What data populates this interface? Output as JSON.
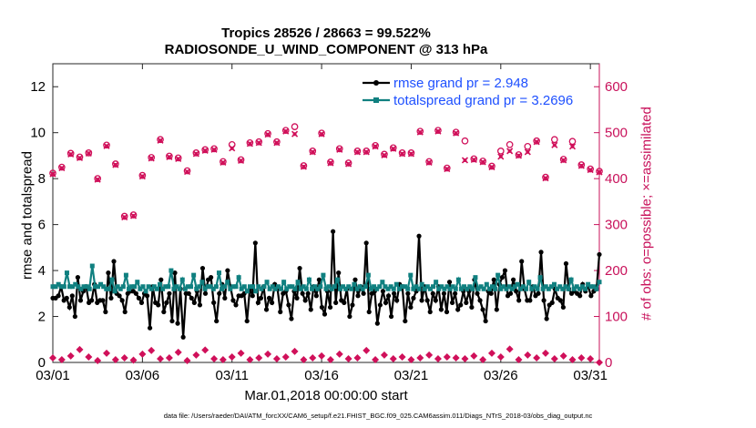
{
  "chart_data": {
    "type": "line",
    "title": "Tropics 28526 / 28663 = 99.522%",
    "subtitle": "RADIOSONDE_U_WIND_COMPONENT @ 313 hPa",
    "xlabel": "Mar.01,2018 00:00:00 start",
    "ylabel_left": "rmse and totalspread",
    "ylabel_right": "# of obs: o=possible; ×=assimilated",
    "footnote": "data file: /Users/raeder/DAI/ATM_forcXX/CAM6_setup/f.e21.FHIST_BGC.f09_025.CAM6assim.011/Diags_NTrS_2018-03/obs_diag_output.nc",
    "x_ticks": [
      "03/01",
      "03/06",
      "03/11",
      "03/16",
      "03/21",
      "03/26",
      "03/31"
    ],
    "x_tick_days": [
      0,
      5,
      10,
      15,
      20,
      25,
      30
    ],
    "xlim": [
      0,
      30.5
    ],
    "ylim_left": [
      0,
      13
    ],
    "yticks_left": [
      "0",
      "2",
      "4",
      "6",
      "8",
      "10",
      "12"
    ],
    "ylim_right": [
      0,
      650
    ],
    "yticks_right": [
      "0",
      "100",
      "200",
      "300",
      "400",
      "500",
      "600"
    ],
    "legend": [
      {
        "label": "rmse grand pr = 2.948",
        "color": "#000000"
      },
      {
        "label": "totalspread grand pr = 3.2696",
        "color": "#108080"
      }
    ],
    "colors": {
      "rmse": "#000000",
      "spread": "#108080",
      "obs": "#d0105a",
      "label_blue": "#1e50ff"
    },
    "series": [
      {
        "name": "rmse",
        "axis": "left",
        "values": [
          2.8,
          2.8,
          2.9,
          3.3,
          2.7,
          2.8,
          2.4,
          2.9,
          2.0,
          3.7,
          2.7,
          3.1,
          3.3,
          2.6,
          2.7,
          3.4,
          2.6,
          2.7,
          2.7,
          2.2,
          3.9,
          2.8,
          4.4,
          3.0,
          2.9,
          2.7,
          2.2,
          3.0,
          3.1,
          3.1,
          3.0,
          2.8,
          2.6,
          3.0,
          2.9,
          1.5,
          3.3,
          2.6,
          2.5,
          3.6,
          2.2,
          2.6,
          3.0,
          1.8,
          3.9,
          1.7,
          3.2,
          1.1,
          3.0,
          3.0,
          2.8,
          2.6,
          3.1,
          2.5,
          4.1,
          3.0,
          3.6,
          3.7,
          2.6,
          1.8,
          3.0,
          3.4,
          2.8,
          4.0,
          3.3,
          2.7,
          2.5,
          2.9,
          2.9,
          3.0,
          1.8,
          3.2,
          2.9,
          5.2,
          2.6,
          2.8,
          3.3,
          2.3,
          2.8,
          2.6,
          3.4,
          3.2,
          2.2,
          3.0,
          3.1,
          2.5,
          1.9,
          3.1,
          2.8,
          4.1,
          3.0,
          2.7,
          3.0,
          2.3,
          3.3,
          2.9,
          3.6,
          2.4,
          2.1,
          3.1,
          2.4,
          5.7,
          2.6,
          3.9,
          2.7,
          2.6,
          3.2,
          2.0,
          2.5,
          3.6,
          2.9,
          3.3,
          3.0,
          5.2,
          2.2,
          3.0,
          3.1,
          1.7,
          2.5,
          3.1,
          2.6,
          2.9,
          2.0,
          3.0,
          2.7,
          3.4,
          3.3,
          1.8,
          3.0,
          2.4,
          2.8,
          3.1,
          5.5,
          2.7,
          3.3,
          2.7,
          2.2,
          3.0,
          2.7,
          3.3,
          2.3,
          3.0,
          2.2,
          3.5,
          2.6,
          3.0,
          2.3,
          2.5,
          3.1,
          2.6,
          3.1,
          2.4,
          3.6,
          3.0,
          2.7,
          2.3,
          1.8,
          3.1,
          3.0,
          3.6,
          2.3,
          3.4,
          3.7,
          4.0,
          2.9,
          3.0,
          3.6,
          3.1,
          2.7,
          4.4,
          3.2,
          2.7,
          2.7,
          3.3,
          2.9,
          3.0,
          4.8,
          2.7,
          1.9,
          2.5,
          2.6,
          3.2,
          2.8,
          2.7,
          2.4,
          4.3,
          3.2,
          3.0,
          3.1,
          3.0,
          2.9,
          3.4,
          3.1,
          3.3,
          2.9,
          3.1,
          3.2,
          4.7
        ]
      },
      {
        "name": "totalspread",
        "axis": "left",
        "values": [
          3.3,
          3.3,
          3.4,
          3.3,
          3.3,
          3.9,
          3.3,
          3.3,
          3.4,
          3.3,
          3.2,
          3.3,
          3.3,
          3.2,
          4.2,
          3.3,
          3.3,
          3.4,
          3.3,
          3.2,
          3.2,
          3.6,
          3.1,
          3.3,
          3.2,
          3.3,
          3.8,
          3.2,
          3.3,
          3.3,
          3.5,
          3.2,
          3.3,
          3.1,
          3.3,
          3.2,
          3.3,
          3.2,
          3.4,
          3.2,
          3.3,
          3.3,
          4.0,
          3.2,
          3.3,
          3.2,
          3.6,
          3.2,
          3.3,
          3.3,
          3.8,
          3.2,
          3.3,
          3.5,
          3.2,
          3.3,
          3.3,
          3.2,
          3.3,
          3.9,
          3.2,
          3.3,
          3.5,
          3.2,
          3.3,
          3.3,
          3.7,
          3.2,
          3.3,
          3.1,
          3.3,
          3.3,
          3.1,
          3.3,
          3.2,
          3.3,
          3.5,
          3.2,
          3.3,
          3.2,
          3.3,
          3.2,
          3.5,
          3.2,
          3.3,
          3.3,
          3.2,
          3.5,
          3.2,
          3.3,
          3.2,
          3.6,
          3.2,
          3.3,
          3.2,
          3.3,
          3.8,
          3.2,
          3.3,
          3.2,
          3.3,
          3.6,
          3.2,
          3.3,
          3.2,
          3.3,
          3.2,
          3.4,
          3.2,
          3.3,
          3.2,
          3.3,
          3.8,
          3.2,
          3.3,
          3.2,
          3.3,
          3.5,
          3.3,
          3.2,
          3.3,
          3.2,
          3.4,
          3.2,
          3.3,
          3.3,
          3.2,
          3.8,
          3.2,
          3.3,
          3.2,
          3.4,
          3.2,
          3.3,
          3.2,
          3.3,
          3.5,
          3.2,
          3.3,
          3.2,
          3.3,
          3.2,
          3.3,
          3.2,
          3.6,
          3.2,
          3.3,
          3.2,
          3.3,
          3.2,
          3.7,
          3.2,
          3.3,
          3.2,
          3.4,
          3.2,
          3.3,
          3.2,
          3.8,
          3.2,
          3.3,
          3.2,
          3.3,
          3.2,
          3.3,
          3.4,
          3.2,
          3.3,
          3.2,
          3.5,
          3.2,
          3.3,
          3.2,
          3.7,
          3.2,
          3.3,
          3.2,
          3.3,
          3.4,
          3.2,
          3.3,
          3.2,
          3.3,
          3.2,
          3.6,
          3.2,
          3.3,
          3.2,
          3.3,
          3.2,
          3.4,
          3.3,
          3.3,
          3.2,
          3.5
        ]
      },
      {
        "name": "obs possible",
        "axis": "right",
        "x_days": [
          0,
          0.5,
          1,
          1.5,
          2,
          2.5,
          3,
          3.5,
          4,
          4.5,
          5,
          5.5,
          6,
          6.5,
          7,
          7.5,
          8,
          8.5,
          9,
          9.5,
          10,
          10.5,
          11,
          11.5,
          12,
          12.5,
          13,
          13.5,
          14,
          14.5,
          15,
          15.5,
          16,
          16.5,
          17,
          17.5,
          18,
          18.5,
          19,
          19.5,
          20,
          20.5,
          21,
          21.5,
          22,
          22.5,
          23,
          23.5,
          24,
          24.5,
          25,
          25.5,
          26,
          26.5,
          27,
          27.5,
          28,
          28.5,
          29,
          29.5,
          30,
          30.5
        ],
        "values": [
          412,
          425,
          455,
          447,
          456,
          400,
          473,
          432,
          318,
          321,
          407,
          446,
          485,
          449,
          445,
          417,
          456,
          463,
          465,
          437,
          474,
          441,
          478,
          480,
          498,
          480,
          505,
          513,
          428,
          460,
          499,
          436,
          465,
          434,
          460,
          460,
          472,
          453,
          467,
          456,
          456,
          503,
          437,
          505,
          423,
          501,
          482,
          443,
          438,
          427,
          460,
          474,
          452,
          470,
          482,
          403,
          485,
          442,
          481,
          430,
          421,
          416
        ]
      },
      {
        "name": "obs assimilated",
        "axis": "right",
        "x_days": [
          0,
          0.5,
          1,
          1.5,
          2,
          2.5,
          3,
          3.5,
          4,
          4.5,
          5,
          5.5,
          6,
          6.5,
          7,
          7.5,
          8,
          8.5,
          9,
          9.5,
          10,
          10.5,
          11,
          11.5,
          12,
          12.5,
          13,
          13.5,
          14,
          14.5,
          15,
          15.5,
          16,
          16.5,
          17,
          17.5,
          18,
          18.5,
          19,
          19.5,
          20,
          20.5,
          21,
          21.5,
          22,
          22.5,
          23,
          23.5,
          24,
          24.5,
          25,
          25.5,
          26,
          26.5,
          27,
          27.5,
          28,
          28.5,
          29,
          29.5,
          30,
          30.5
        ],
        "values": [
          410,
          423,
          453,
          445,
          455,
          398,
          471,
          430,
          316,
          319,
          405,
          444,
          483,
          447,
          443,
          415,
          454,
          461,
          463,
          435,
          466,
          439,
          476,
          478,
          496,
          478,
          503,
          497,
          426,
          458,
          497,
          434,
          463,
          432,
          458,
          458,
          470,
          451,
          465,
          454,
          454,
          501,
          435,
          503,
          421,
          499,
          440,
          441,
          436,
          425,
          448,
          460,
          450,
          458,
          480,
          401,
          473,
          440,
          470,
          428,
          419,
          414
        ]
      },
      {
        "name": "obs low possible",
        "axis": "right",
        "x_days": [
          0,
          0.5,
          1,
          1.5,
          2,
          2.5,
          3,
          3.5,
          4,
          4.5,
          5,
          5.5,
          6,
          6.5,
          7,
          7.5,
          8,
          8.5,
          9,
          9.5,
          10,
          10.5,
          11,
          11.5,
          12,
          12.5,
          13,
          13.5,
          14,
          14.5,
          15,
          15.5,
          16,
          16.5,
          17,
          17.5,
          18,
          18.5,
          19,
          19.5,
          20,
          20.5,
          21,
          21.5,
          22,
          22.5,
          23,
          23.5,
          24,
          24.5,
          25,
          25.5,
          26,
          26.5,
          27,
          27.5,
          28,
          28.5,
          29,
          29.5,
          30,
          30.5
        ],
        "values": [
          10,
          6,
          14,
          28,
          12,
          4,
          20,
          6,
          10,
          5,
          18,
          26,
          8,
          10,
          22,
          4,
          16,
          27,
          8,
          6,
          12,
          20,
          6,
          10,
          18,
          8,
          12,
          24,
          6,
          10,
          14,
          6,
          18,
          8,
          10,
          26,
          6,
          16,
          8,
          12,
          6,
          10,
          16,
          8,
          12,
          10,
          8,
          14,
          6,
          20,
          12,
          29,
          6,
          16,
          10,
          20,
          8,
          14,
          6,
          10,
          8,
          -2
        ]
      }
    ]
  }
}
